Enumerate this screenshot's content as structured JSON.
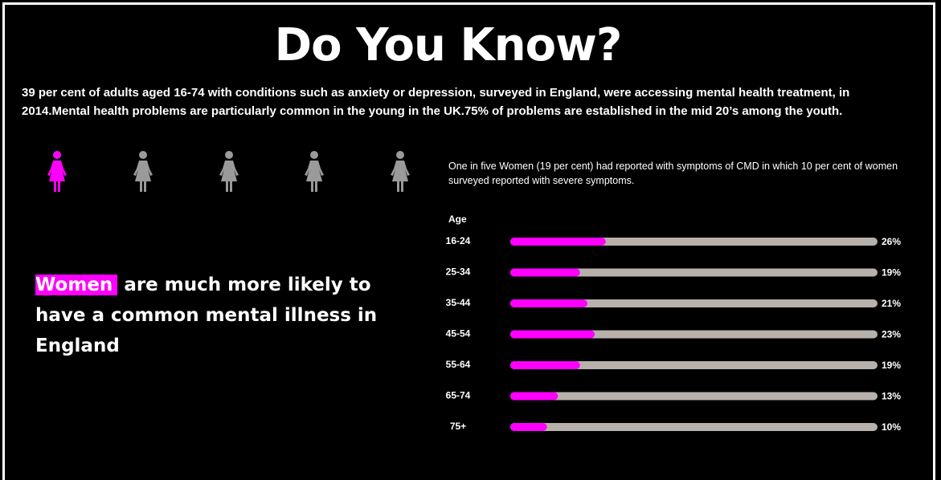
{
  "chart_data": {
    "type": "bar",
    "orientation": "horizontal",
    "title": "Do You Know?",
    "subtitle": "39 per cent of adults aged 16-74 with conditions such as anxiety or depression, surveyed in England, were accessing mental health treatment, in 2014.Mental health problems are particularly common in the young in the UK.75% of problems are established in the mid 20’s among the youth.",
    "annotation": "One in five Women (19 per cent) had reported with  symptoms of CMD in which 10 per cent of women surveyed reported with severe symptoms.",
    "callout": {
      "highlight": "Women",
      "text": "are much more likely to have a common mental illness in England"
    },
    "ylabel": "Age",
    "categories": [
      "16-24",
      "25-34",
      "35-44",
      "45-54",
      "55-64",
      "65-74",
      "75+"
    ],
    "values": [
      26,
      19,
      21,
      23,
      19,
      13,
      10
    ],
    "value_labels": [
      "26%",
      "19%",
      "21%",
      "23%",
      "19%",
      "13%",
      "10%"
    ],
    "xlim": [
      0,
      100
    ],
    "color": "#ff00ff",
    "track_color": "#b8b0ab"
  }
}
